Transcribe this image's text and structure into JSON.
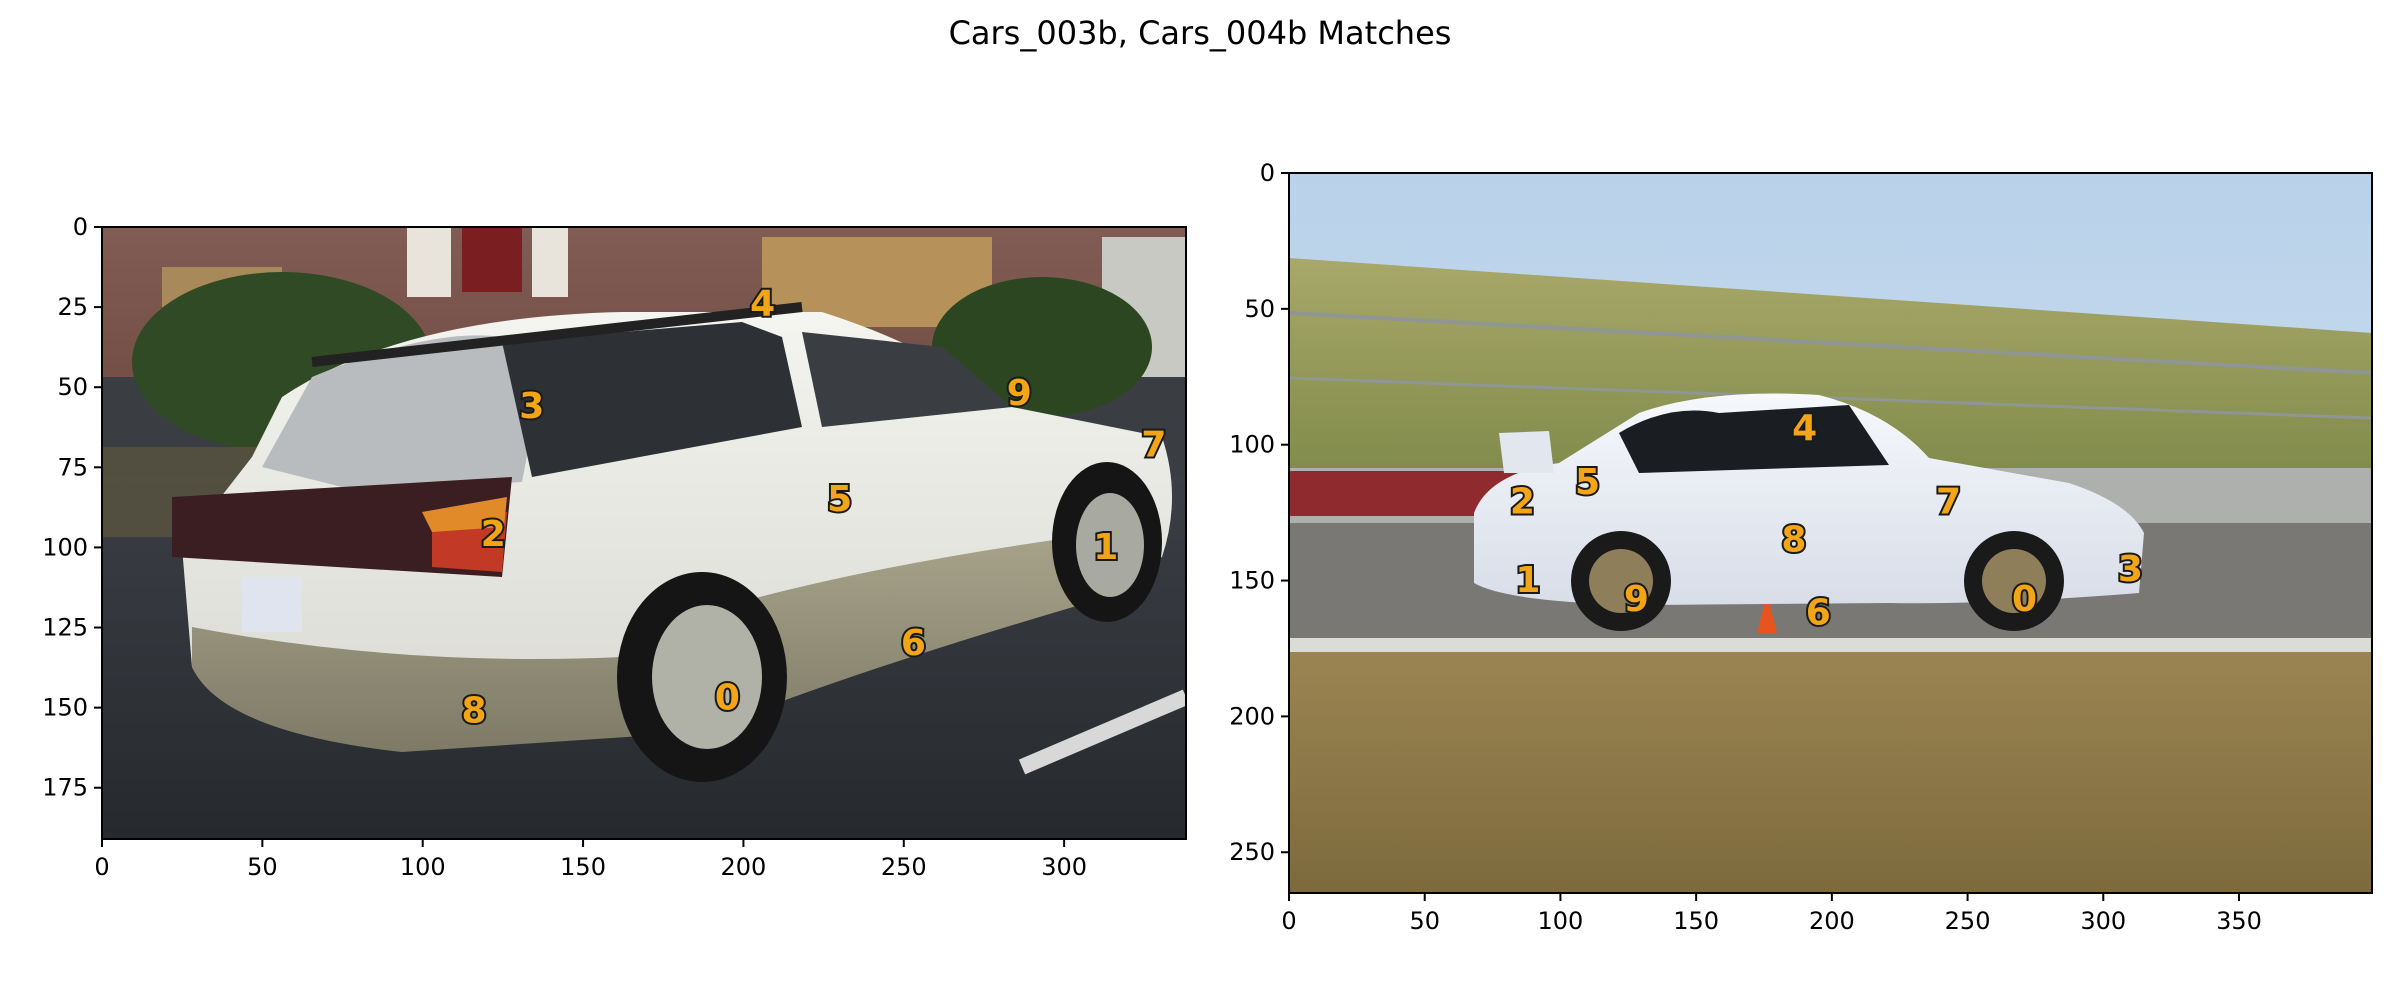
{
  "figure": {
    "title": "Cars_003b, Cars_004b Matches"
  },
  "colors": {
    "keypoint": "#f2a516",
    "keypoint_outline": "#1a1a1a",
    "axis": "#000000"
  },
  "chart_data": [
    {
      "type": "scatter",
      "image_name": "Cars_003b",
      "xlim": [
        0,
        338
      ],
      "ylim": [
        191,
        0
      ],
      "x_ticks": [
        0,
        50,
        100,
        150,
        200,
        250,
        300
      ],
      "y_ticks": [
        0,
        25,
        50,
        75,
        100,
        125,
        150,
        175
      ],
      "grid": false,
      "points": [
        {
          "label": "0",
          "x": 195,
          "y": 147
        },
        {
          "label": "1",
          "x": 313,
          "y": 100
        },
        {
          "label": "2",
          "x": 122,
          "y": 96
        },
        {
          "label": "3",
          "x": 134,
          "y": 56
        },
        {
          "label": "4",
          "x": 206,
          "y": 24
        },
        {
          "label": "5",
          "x": 230,
          "y": 85
        },
        {
          "label": "6",
          "x": 253,
          "y": 130
        },
        {
          "label": "7",
          "x": 328,
          "y": 68
        },
        {
          "label": "8",
          "x": 116,
          "y": 151
        },
        {
          "label": "9",
          "x": 286,
          "y": 52
        }
      ]
    },
    {
      "type": "scatter",
      "image_name": "Cars_004b",
      "xlim": [
        0,
        399
      ],
      "ylim": [
        265,
        0
      ],
      "x_ticks": [
        0,
        50,
        100,
        150,
        200,
        250,
        300,
        350
      ],
      "y_ticks": [
        0,
        50,
        100,
        150,
        200,
        250
      ],
      "grid": false,
      "points": [
        {
          "label": "0",
          "x": 271,
          "y": 157
        },
        {
          "label": "1",
          "x": 88,
          "y": 150
        },
        {
          "label": "2",
          "x": 86,
          "y": 121
        },
        {
          "label": "3",
          "x": 310,
          "y": 146
        },
        {
          "label": "4",
          "x": 190,
          "y": 94
        },
        {
          "label": "5",
          "x": 110,
          "y": 114
        },
        {
          "label": "6",
          "x": 195,
          "y": 162
        },
        {
          "label": "7",
          "x": 243,
          "y": 121
        },
        {
          "label": "8",
          "x": 186,
          "y": 135
        },
        {
          "label": "9",
          "x": 128,
          "y": 157
        }
      ]
    }
  ]
}
